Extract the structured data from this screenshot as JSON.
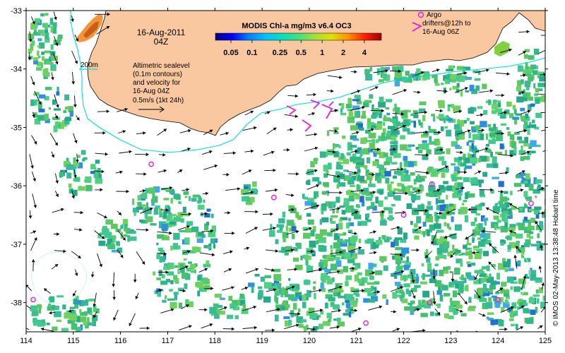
{
  "map": {
    "lon_range": [
      114,
      125
    ],
    "lat_range": [
      -38.5,
      -33
    ],
    "lon_ticks": [
      "114",
      "115",
      "116",
      "117",
      "118",
      "119",
      "120",
      "121",
      "122",
      "123",
      "124",
      "125"
    ],
    "lat_ticks": [
      "-33",
      "-34",
      "-35",
      "-36",
      "-37",
      "-38"
    ],
    "land_color": "#fac8a0",
    "contour_color": "#00d8d8",
    "arrow_color": "#000000",
    "drifter_color": "#e020e0"
  },
  "header": {
    "date": "16-Aug-2011",
    "time": "04Z"
  },
  "contour_label": "200m",
  "altimetry_note": [
    "Altimetric sealevel",
    "(0.1m contours)",
    "and velocity for",
    "16-Aug 04Z"
  ],
  "scale_label": "0.5m/s (1kt 24h)",
  "colorbar": {
    "title": "MODIS Chl-a mg/m3 v6.4 OC3",
    "ticks": [
      "0.05",
      "0.1",
      "0.25",
      "0.5",
      "1",
      "2",
      "4"
    ],
    "colors": [
      "#000080",
      "#0000ff",
      "#0080ff",
      "#00c0ff",
      "#00e0c0",
      "#40e080",
      "#a0e040",
      "#e0e000",
      "#ff9000",
      "#ff2000",
      "#a00000"
    ]
  },
  "legend": {
    "argo_label": "Argo",
    "drifter_lines": [
      "drifters@12h to",
      "16-Aug 06Z"
    ]
  },
  "credit": "© IMOS 02-May-2013 13:38:48 Hobart time",
  "argo_floats": [
    {
      "lon": 114.15,
      "lat": -37.95
    },
    {
      "lon": 116.65,
      "lat": -35.63
    },
    {
      "lon": 119.25,
      "lat": -36.2
    },
    {
      "lon": 121.2,
      "lat": -38.35
    },
    {
      "lon": 122.0,
      "lat": -36.5
    },
    {
      "lon": 122.6,
      "lat": -35.97
    },
    {
      "lon": 122.55,
      "lat": -38.0
    },
    {
      "lon": 124.0,
      "lat": -37.95
    },
    {
      "lon": 124.7,
      "lat": -36.3
    }
  ]
}
